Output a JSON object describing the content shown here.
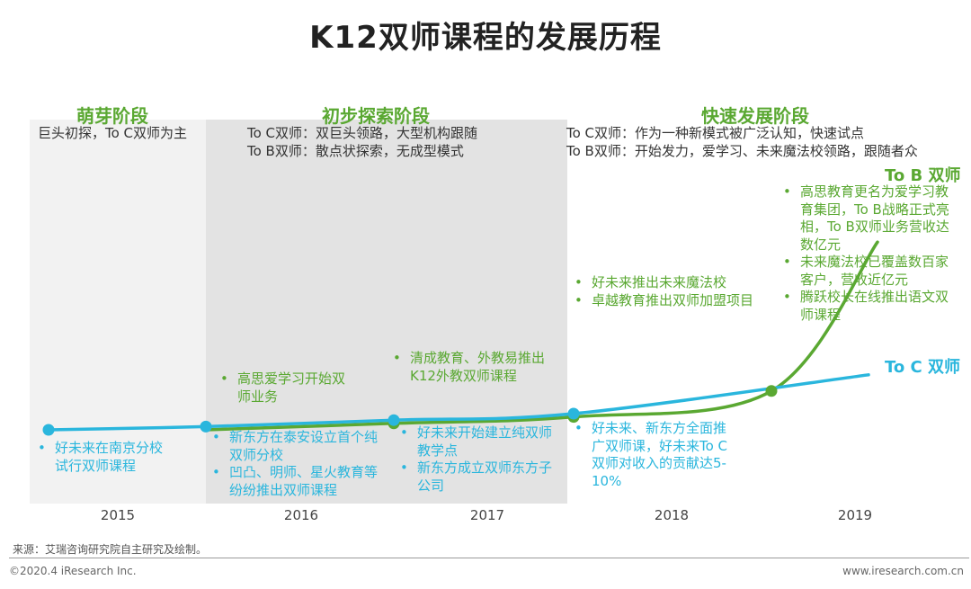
{
  "title": "K12双师课程的发展历程",
  "phases": [
    {
      "name": "萌芽阶段",
      "lines": [
        "巨头初探，To C双师为主"
      ]
    },
    {
      "name": "初步探索阶段",
      "lines": [
        "To C双师：双巨头领路，大型机构跟随",
        "To B双师：散点状探索，无成型模式"
      ]
    },
    {
      "name": "快速发展阶段",
      "lines": [
        "To C双师：作为一种新模式被广泛认知，快速试点",
        "To B双师：开始发力，爱学习、未来魔法校领路，跟随者众"
      ]
    }
  ],
  "annotations": {
    "g2016": [
      "高思爱学习开始双师业务"
    ],
    "g2017": [
      "清成教育、外教易推出K12外教双师课程"
    ],
    "g2018": [
      "好未来推出未来魔法校",
      "卓越教育推出双师加盟项目"
    ],
    "g2019": [
      "高思教育更名为爱学习教育集团，To B战略正式亮相，To B双师业务营收达数亿元",
      "未来魔法校已覆盖数百家客户，营收近亿元",
      "腾跃校长在线推出语文双师课程"
    ],
    "b2015": [
      "好未来在南京分校试行双师课程"
    ],
    "b2016": [
      "新东方在泰安设立首个纯双师分校",
      "凹凸、明师、星火教育等纷纷推出双师课程"
    ],
    "b2017": [
      "好未来开始建立纯双师教学点",
      "新东方成立双师东方子公司"
    ],
    "b2018": [
      "好未来、新东方全面推广双师课，好未来To C双师对收入的贡献达5-10%"
    ]
  },
  "chart_data": {
    "type": "line",
    "title": "K12双师课程的发展历程",
    "categories": [
      "2015",
      "2016",
      "2017",
      "2018",
      "2019"
    ],
    "ylabel": "",
    "xlabel": "",
    "ylim": [
      0,
      100
    ],
    "series": [
      {
        "name": "To B 双师",
        "color": "#5aa832",
        "values": [
          0,
          2,
          4,
          12,
          58
        ]
      },
      {
        "name": "To C 双师",
        "color": "#2ab6dd",
        "values": [
          0,
          1,
          3,
          5,
          17
        ]
      }
    ],
    "phase_shading": [
      "萌芽阶段",
      "初步探索阶段",
      "快速发展阶段"
    ]
  },
  "colors": {
    "green": "#5aa832",
    "blue": "#2ab6dd",
    "band1": "#f2f2f2",
    "band2": "#e3e3e3"
  },
  "source": "来源：艾瑞咨询研究院自主研究及绘制。",
  "footer": {
    "left": "©2020.4 iResearch Inc.",
    "right": "www.iresearch.com.cn"
  }
}
